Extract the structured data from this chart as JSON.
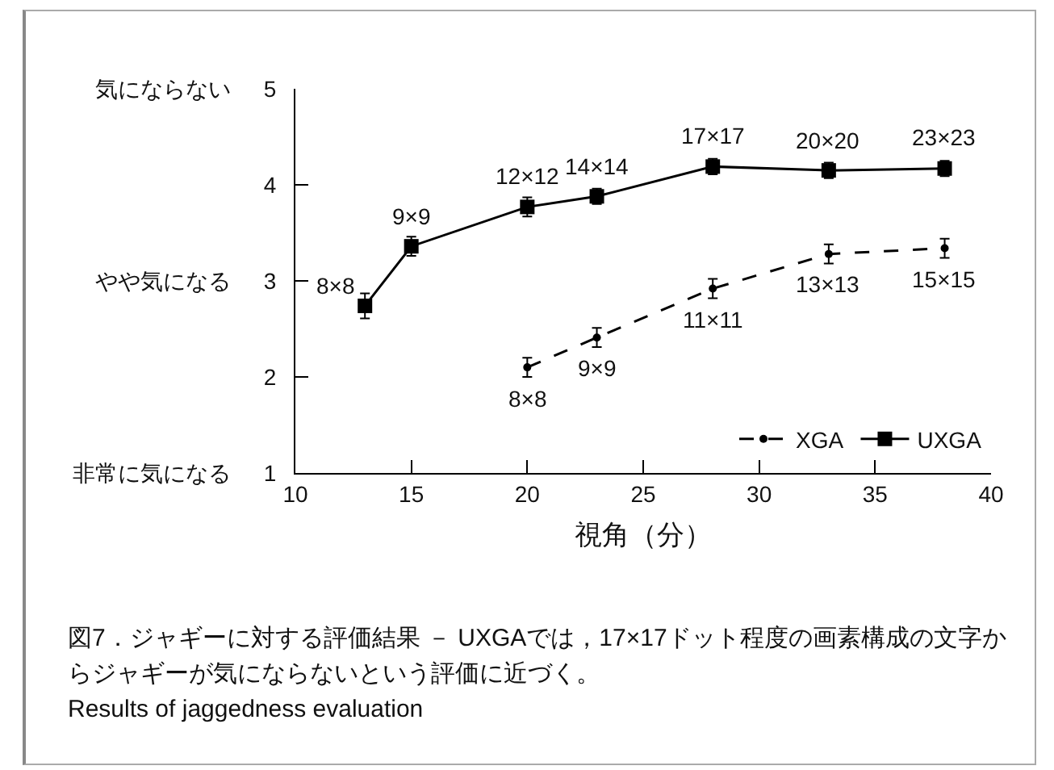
{
  "chart_data": {
    "type": "line",
    "xlabel": "視角（分）",
    "xlim": [
      10,
      40
    ],
    "xticks": [
      10,
      15,
      20,
      25,
      30,
      35,
      40
    ],
    "ylim": [
      1,
      5
    ],
    "yticks": [
      1,
      2,
      3,
      4,
      5
    ],
    "y2_categories": [
      "気にならない",
      null,
      "やや気になる",
      null,
      "非常に気になる"
    ],
    "grid": false,
    "legend": "bottom right",
    "series": [
      {
        "name": "XGA",
        "color": "#000000",
        "line_style": "dashed",
        "marker": "circle",
        "x": [
          20,
          23,
          28,
          33,
          38
        ],
        "values": [
          2.1,
          2.41,
          2.92,
          3.28,
          3.34
        ],
        "errors": [
          0.1,
          0.1,
          0.1,
          0.1,
          0.1
        ]
      },
      {
        "name": "UXGA",
        "color": "#000000",
        "line_style": "solid",
        "marker": "square",
        "x": [
          13,
          15,
          20,
          23,
          28,
          33,
          38
        ],
        "values": [
          2.74,
          3.36,
          3.77,
          3.88,
          4.19,
          4.15,
          4.17
        ],
        "errors": [
          0.13,
          0.1,
          0.1,
          0.08,
          0.08,
          0.08,
          0.08
        ]
      }
    ],
    "annotations": [
      {
        "text": "8×8",
        "x": 13,
        "y": 2.74
      },
      {
        "text": "9×9",
        "x": 15,
        "y": 3.36
      },
      {
        "text": "12×12",
        "x": 20,
        "y": 3.77
      },
      {
        "text": "14×14",
        "x": 23,
        "y": 3.88
      },
      {
        "text": "17×17",
        "x": 28,
        "y": 4.19
      },
      {
        "text": "20×20",
        "x": 33,
        "y": 4.15
      },
      {
        "text": "23×23",
        "x": 38,
        "y": 4.17
      },
      {
        "text": "8×8",
        "x": 20,
        "y": 2.1
      },
      {
        "text": "9×9",
        "x": 23,
        "y": 2.41
      },
      {
        "text": "11×11",
        "x": 28,
        "y": 2.92
      },
      {
        "text": "13×13",
        "x": 33,
        "y": 3.28
      },
      {
        "text": "15×15",
        "x": 38,
        "y": 3.34
      },
      "図7．ジャギーに対する評価結果 － UXGAでは，17×17ドット程度の画素構成の文字からジャギーが気にならないという評価に近づく。",
      "Results of jaggedness evaluation"
    ]
  }
}
